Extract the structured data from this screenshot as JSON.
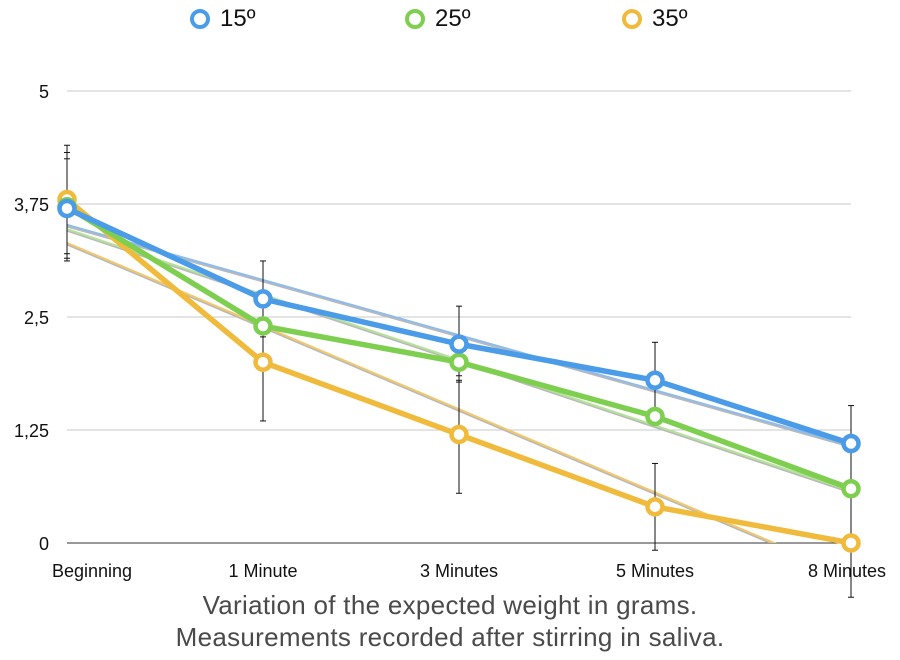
{
  "chart_data": {
    "type": "line",
    "categories": [
      "Beginning",
      "1 Minute",
      "3 Minutes",
      "5 Minutes",
      "8 Minutes"
    ],
    "series": [
      {
        "name": "15º",
        "color": "#4a9be8",
        "trend_color": "#8fbcec",
        "values": [
          3.7,
          2.7,
          2.2,
          1.8,
          1.1
        ],
        "error": [
          0.55,
          0.42,
          0.42,
          0.42,
          0.42
        ]
      },
      {
        "name": "25º",
        "color": "#7ecf50",
        "trend_color": "#b5e39a",
        "values": [
          3.72,
          2.4,
          2.0,
          1.4,
          0.6
        ],
        "error": [
          0.6,
          0.0,
          0.2,
          0.0,
          0.0
        ]
      },
      {
        "name": "35º",
        "color": "#f0bb3c",
        "trend_color": "#f2c86a",
        "values": [
          3.8,
          2.0,
          1.2,
          0.4,
          0.0
        ],
        "error": [
          0.6,
          0.65,
          0.65,
          0.48,
          0.6
        ]
      }
    ],
    "trendline_color": "#b9b9b9",
    "ylim": [
      0,
      5
    ],
    "yticks": [
      0,
      1.25,
      2.5,
      3.75,
      5
    ],
    "ytick_labels": [
      "0",
      "1,25",
      "2,5",
      "3,75",
      "5"
    ],
    "grid": true,
    "legend_position": "top",
    "caption_lines": [
      "Variation of the expected weight in grams.",
      "Measurements recorded after stirring in saliva."
    ]
  }
}
